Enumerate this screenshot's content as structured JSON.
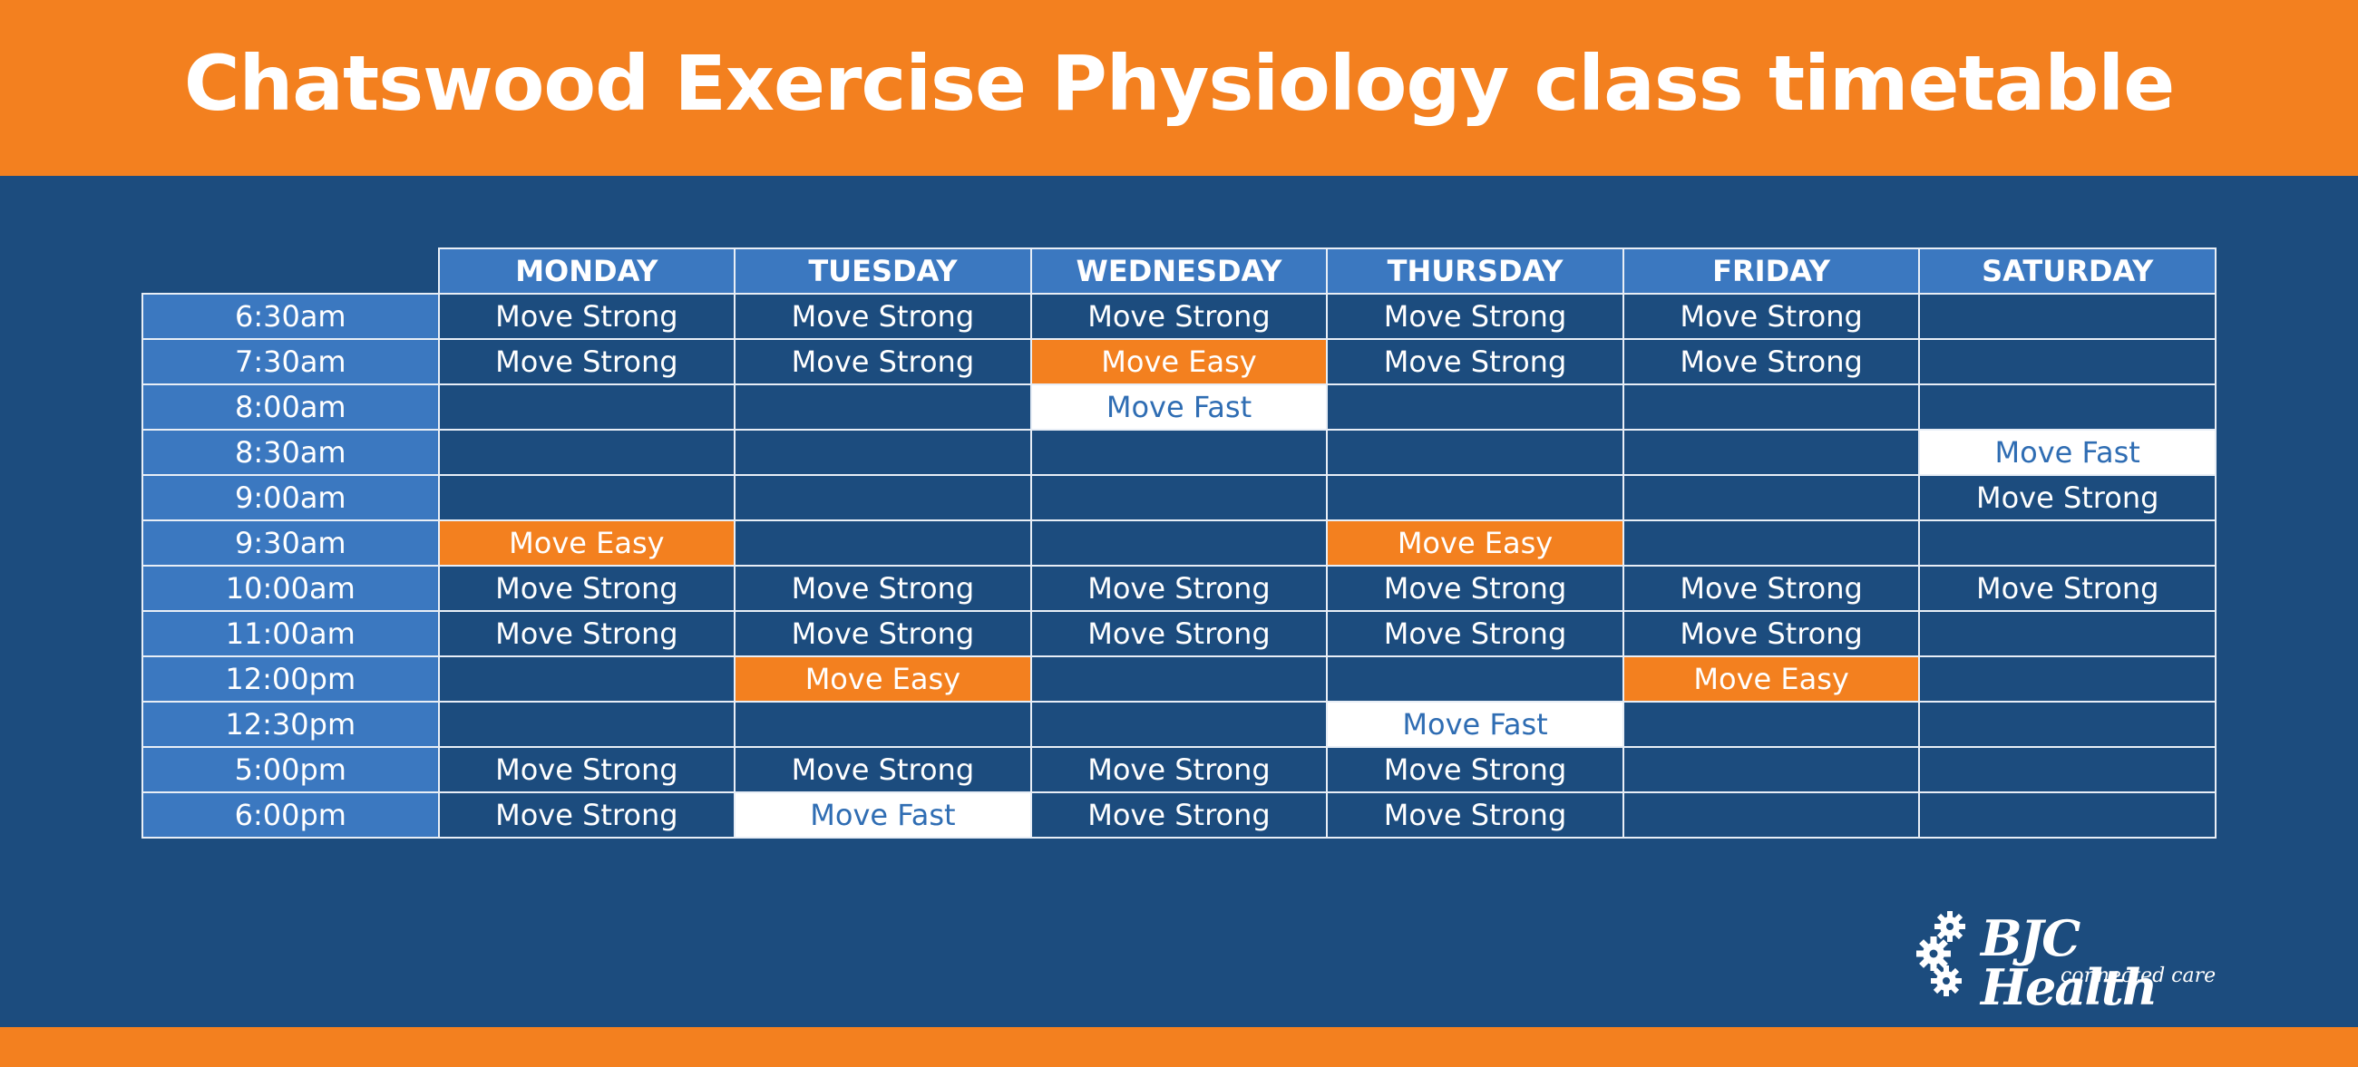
{
  "header": {
    "title": "Chatswood Exercise Physiology class timetable"
  },
  "timetable": {
    "days": [
      "MONDAY",
      "TUESDAY",
      "WEDNESDAY",
      "THURSDAY",
      "FRIDAY",
      "SATURDAY"
    ],
    "rows": [
      {
        "time": "6:30am",
        "cells": [
          {
            "text": "Move Strong",
            "kind": "strong"
          },
          {
            "text": "Move Strong",
            "kind": "strong"
          },
          {
            "text": "Move Strong",
            "kind": "strong"
          },
          {
            "text": "Move Strong",
            "kind": "strong"
          },
          {
            "text": "Move Strong",
            "kind": "strong"
          },
          {
            "text": "",
            "kind": "empty"
          }
        ]
      },
      {
        "time": "7:30am",
        "cells": [
          {
            "text": "Move Strong",
            "kind": "strong"
          },
          {
            "text": "Move Strong",
            "kind": "strong"
          },
          {
            "text": "Move Easy",
            "kind": "easy"
          },
          {
            "text": "Move Strong",
            "kind": "strong"
          },
          {
            "text": "Move Strong",
            "kind": "strong"
          },
          {
            "text": "",
            "kind": "empty"
          }
        ]
      },
      {
        "time": "8:00am",
        "cells": [
          {
            "text": "",
            "kind": "empty"
          },
          {
            "text": "",
            "kind": "empty"
          },
          {
            "text": "Move Fast",
            "kind": "fast"
          },
          {
            "text": "",
            "kind": "empty"
          },
          {
            "text": "",
            "kind": "empty"
          },
          {
            "text": "",
            "kind": "empty"
          }
        ]
      },
      {
        "time": "8:30am",
        "cells": [
          {
            "text": "",
            "kind": "empty"
          },
          {
            "text": "",
            "kind": "empty"
          },
          {
            "text": "",
            "kind": "empty"
          },
          {
            "text": "",
            "kind": "empty"
          },
          {
            "text": "",
            "kind": "empty"
          },
          {
            "text": "Move Fast",
            "kind": "fast"
          }
        ]
      },
      {
        "time": "9:00am",
        "cells": [
          {
            "text": "",
            "kind": "empty"
          },
          {
            "text": "",
            "kind": "empty"
          },
          {
            "text": "",
            "kind": "empty"
          },
          {
            "text": "",
            "kind": "empty"
          },
          {
            "text": "",
            "kind": "empty"
          },
          {
            "text": "Move Strong",
            "kind": "strong"
          }
        ]
      },
      {
        "time": "9:30am",
        "cells": [
          {
            "text": "Move Easy",
            "kind": "easy"
          },
          {
            "text": "",
            "kind": "empty"
          },
          {
            "text": "",
            "kind": "empty"
          },
          {
            "text": "Move Easy",
            "kind": "easy"
          },
          {
            "text": "",
            "kind": "empty"
          },
          {
            "text": "",
            "kind": "empty"
          }
        ]
      },
      {
        "time": "10:00am",
        "cells": [
          {
            "text": "Move Strong",
            "kind": "strong"
          },
          {
            "text": "Move Strong",
            "kind": "strong"
          },
          {
            "text": "Move Strong",
            "kind": "strong"
          },
          {
            "text": "Move Strong",
            "kind": "strong"
          },
          {
            "text": "Move Strong",
            "kind": "strong"
          },
          {
            "text": "Move Strong",
            "kind": "strong"
          }
        ]
      },
      {
        "time": "11:00am",
        "cells": [
          {
            "text": "Move Strong",
            "kind": "strong"
          },
          {
            "text": "Move Strong",
            "kind": "strong"
          },
          {
            "text": "Move Strong",
            "kind": "strong"
          },
          {
            "text": "Move Strong",
            "kind": "strong"
          },
          {
            "text": "Move Strong",
            "kind": "strong"
          },
          {
            "text": "",
            "kind": "empty"
          }
        ]
      },
      {
        "time": "12:00pm",
        "cells": [
          {
            "text": "",
            "kind": "empty"
          },
          {
            "text": "Move Easy",
            "kind": "easy"
          },
          {
            "text": "",
            "kind": "empty"
          },
          {
            "text": "",
            "kind": "empty"
          },
          {
            "text": "Move Easy",
            "kind": "easy"
          },
          {
            "text": "",
            "kind": "empty"
          }
        ]
      },
      {
        "time": "12:30pm",
        "cells": [
          {
            "text": "",
            "kind": "empty"
          },
          {
            "text": "",
            "kind": "empty"
          },
          {
            "text": "",
            "kind": "empty"
          },
          {
            "text": "Move Fast",
            "kind": "fast"
          },
          {
            "text": "",
            "kind": "empty"
          },
          {
            "text": "",
            "kind": "empty"
          }
        ]
      },
      {
        "time": "5:00pm",
        "cells": [
          {
            "text": "Move Strong",
            "kind": "strong"
          },
          {
            "text": "Move Strong",
            "kind": "strong"
          },
          {
            "text": "Move Strong",
            "kind": "strong"
          },
          {
            "text": "Move Strong",
            "kind": "strong"
          },
          {
            "text": "",
            "kind": "empty"
          },
          {
            "text": "",
            "kind": "empty"
          }
        ]
      },
      {
        "time": "6:00pm",
        "cells": [
          {
            "text": "Move Strong",
            "kind": "strong"
          },
          {
            "text": "Move Fast",
            "kind": "fast"
          },
          {
            "text": "Move Strong",
            "kind": "strong"
          },
          {
            "text": "Move Strong",
            "kind": "strong"
          },
          {
            "text": "",
            "kind": "empty"
          },
          {
            "text": "",
            "kind": "empty"
          }
        ]
      }
    ]
  },
  "logo": {
    "name": "BJC Health",
    "tagline": "connected care",
    "icon": "gears-icon"
  },
  "colors": {
    "brand_orange": "#f3801f",
    "navy": "#1c4c7e",
    "header_blue": "#3b78c0",
    "fast_text": "#2f6db3"
  }
}
